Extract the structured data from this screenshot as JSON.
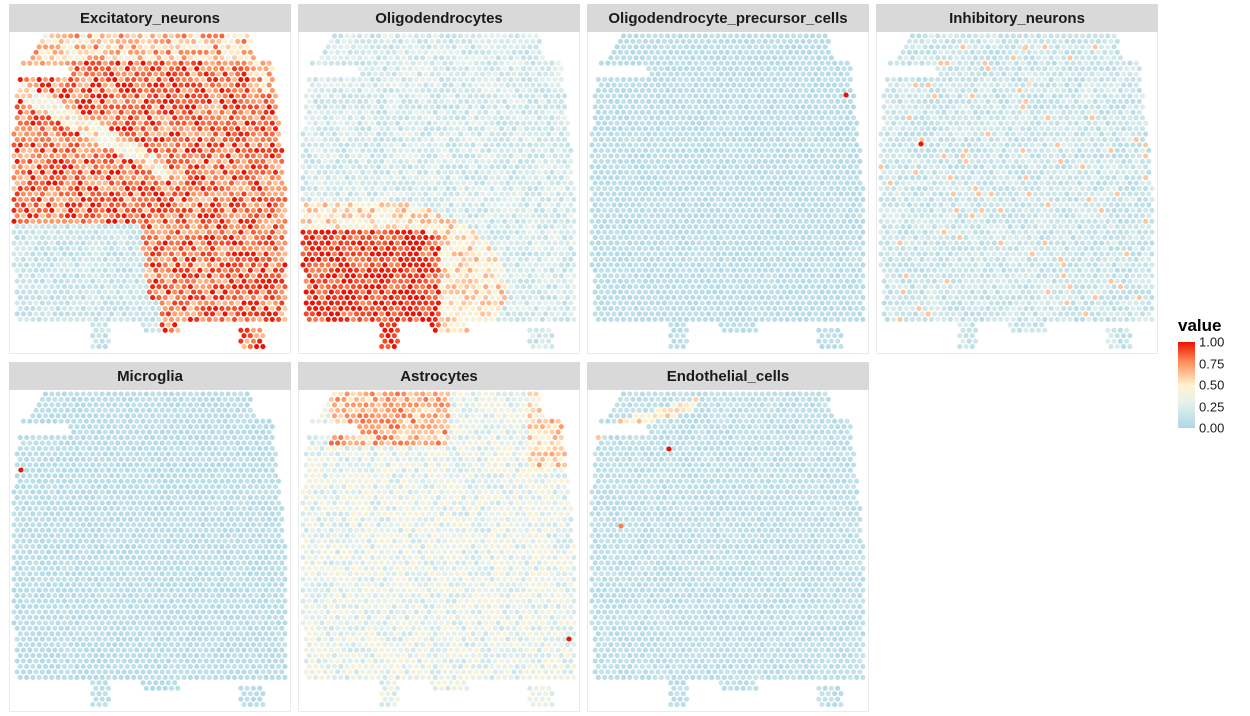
{
  "chart_data": {
    "type": "scatter",
    "description_kind": "faceted spatial spot map",
    "facets": [
      {
        "name": "Excitatory_neurons",
        "pattern": "excitatory",
        "hotspots": []
      },
      {
        "name": "Oligodendrocytes",
        "pattern": "oligo",
        "hotspots": []
      },
      {
        "name": "Oligodendrocyte_precursor_cells",
        "pattern": "uniform_low",
        "hotspots": [
          {
            "value": 1.0
          }
        ]
      },
      {
        "name": "Inhibitory_neurons",
        "pattern": "speckled_low",
        "hotspots": [
          {
            "value": 1.0
          },
          {
            "value": 0.6
          },
          {
            "value": 0.55
          }
        ]
      },
      {
        "name": "Microglia",
        "pattern": "uniform_low",
        "hotspots": [
          {
            "value": 1.0
          }
        ]
      },
      {
        "name": "Astrocytes",
        "pattern": "astro",
        "hotspots": [
          {
            "value": 1.0
          }
        ]
      },
      {
        "name": "Endothelial_cells",
        "pattern": "endo",
        "hotspots": [
          {
            "value": 1.0
          },
          {
            "value": 0.8
          }
        ]
      }
    ],
    "legend": {
      "title": "value",
      "ticks": [
        "1.00",
        "0.75",
        "0.50",
        "0.25",
        "0.00"
      ],
      "range": [
        0,
        1
      ],
      "placement": "right"
    },
    "colors": {
      "low": "#add8e6",
      "mid": "#fff2cf",
      "high": "#ee1100"
    }
  }
}
